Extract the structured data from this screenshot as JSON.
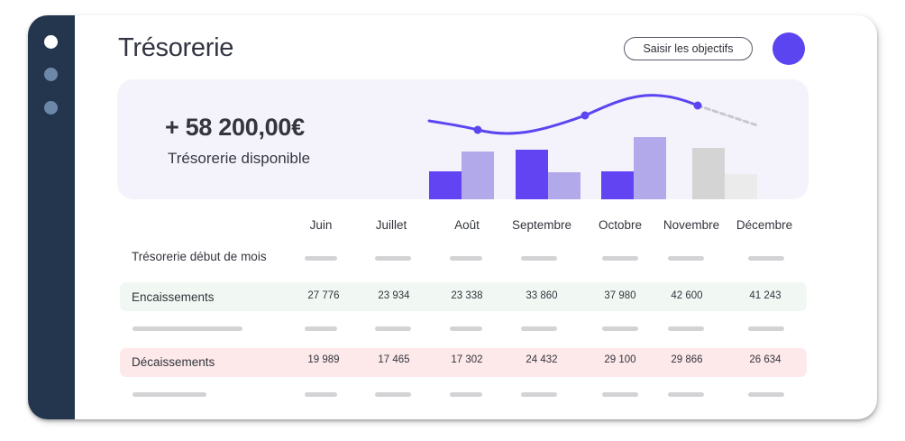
{
  "header": {
    "title": "Trésorerie",
    "objectives_button": "Saisir les objectifs"
  },
  "summary": {
    "amount": "+ 58 200,00€",
    "label": "Trésorerie disponible"
  },
  "colors": {
    "sidebar": "#24364d",
    "accent": "#5b45f0",
    "bar_dark": "#6344f3",
    "bar_light": "#b2a9ea",
    "bar_forecast": "#d4d4d4",
    "bar_forecast_light": "#ebebeb",
    "income_row": "#f1f8f3",
    "expense_row": "#fde9ea"
  },
  "table": {
    "months": [
      "Juin",
      "Juillet",
      "Août",
      "Septembre",
      "Octobre",
      "Novembre",
      "Décembre"
    ],
    "rows": {
      "opening": {
        "label": "Trésorerie début de mois"
      },
      "income": {
        "label": "Encaissements",
        "values": [
          "27 776",
          "23 934",
          "23 338",
          "33 860",
          "37 980",
          "42 600",
          "41 243"
        ]
      },
      "expenses": {
        "label": "Décaissements",
        "values": [
          "19 989",
          "17 465",
          "17 302",
          "24 432",
          "29 100",
          "29 866",
          "26 634"
        ]
      }
    }
  }
}
